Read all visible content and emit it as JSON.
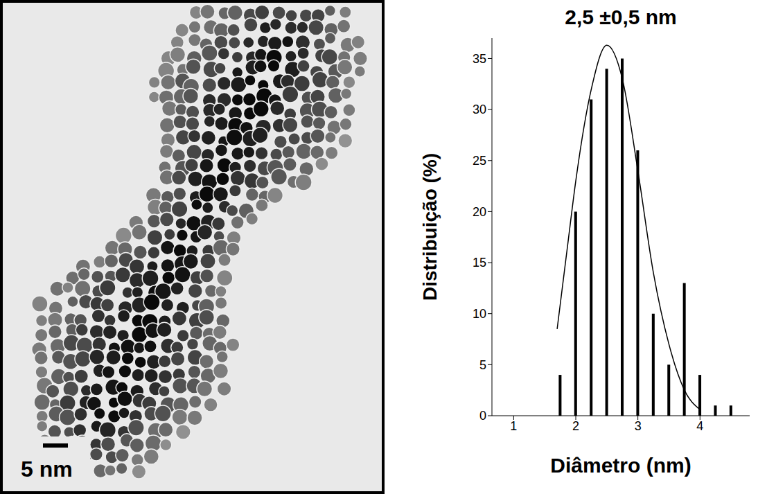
{
  "chart_data": {
    "type": "histogram",
    "title": "2,5 ±0,5 nm",
    "x_label": "Diâmetro (nm)",
    "y_label": "Distribuição (%)",
    "bins": [
      1.625,
      1.875,
      2.125,
      2.375,
      2.625,
      2.875,
      3.125,
      3.375,
      3.625,
      3.875,
      4.125,
      4.375,
      4.625
    ],
    "counts": [
      4,
      20,
      31,
      34,
      35,
      26,
      10,
      5,
      13,
      4,
      1,
      1
    ],
    "color": "#000000",
    "fit": {
      "x": [
        1.7,
        1.875,
        2.0,
        2.25,
        2.5,
        2.75,
        3.0,
        3.25,
        3.5,
        3.75,
        4.0
      ],
      "values": [
        8.5,
        17,
        23,
        32,
        36.3,
        33,
        24,
        14,
        7,
        2.5,
        0.6
      ],
      "color": "#000000"
    },
    "xlim": [
      0.65,
      4.8
    ],
    "xticks": [
      1,
      2,
      3,
      4
    ],
    "ylim": [
      0,
      37
    ],
    "yticks": [
      0,
      5,
      10,
      15,
      20,
      25,
      30,
      35
    ]
  },
  "image": {
    "scale_bar_label": "5 nm"
  }
}
